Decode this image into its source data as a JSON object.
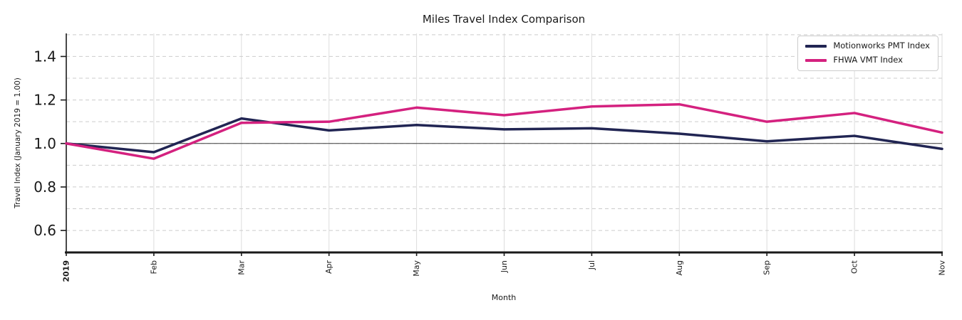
{
  "chart_data": {
    "type": "line",
    "title": "Miles Travel Index Comparison",
    "xlabel": "Month",
    "ylabel": "Travel Index (January 2019 = 1.00)",
    "categories": [
      "2019",
      "Feb",
      "Mar",
      "Apr",
      "May",
      "Jun",
      "Jul",
      "Aug",
      "Sep",
      "Oct",
      "Nov"
    ],
    "series": [
      {
        "name": "Motionworks PMT Index",
        "color": "#212553",
        "values": [
          1.0,
          0.96,
          1.115,
          1.06,
          1.085,
          1.065,
          1.07,
          1.045,
          1.01,
          1.035,
          0.975
        ]
      },
      {
        "name": "FHWA VMT Index",
        "color": "#d4217f",
        "values": [
          1.0,
          0.93,
          1.095,
          1.1,
          1.165,
          1.13,
          1.17,
          1.18,
          1.1,
          1.14,
          1.05
        ]
      }
    ],
    "ylim": [
      0.499,
      1.506
    ],
    "yticks": [
      0.6,
      0.8,
      1.0,
      1.2,
      1.4
    ],
    "ytick_labels": [
      "0.6",
      "0.8",
      "1.0",
      "1.2",
      "1.4"
    ],
    "baseline": 1.0,
    "grid": {
      "horizontal_min": 0.6,
      "horizontal_max": 1.5,
      "horizontal_step": 0.1,
      "vertical": "every-month",
      "style": "dashed"
    },
    "legend_position": "upper right",
    "colors": {
      "grid": "#cccccc",
      "vertical_grid": "#dddddd",
      "baseline": "#3c3c3c",
      "axis": "#1a1a1a",
      "text": "#1a1a1a"
    }
  }
}
